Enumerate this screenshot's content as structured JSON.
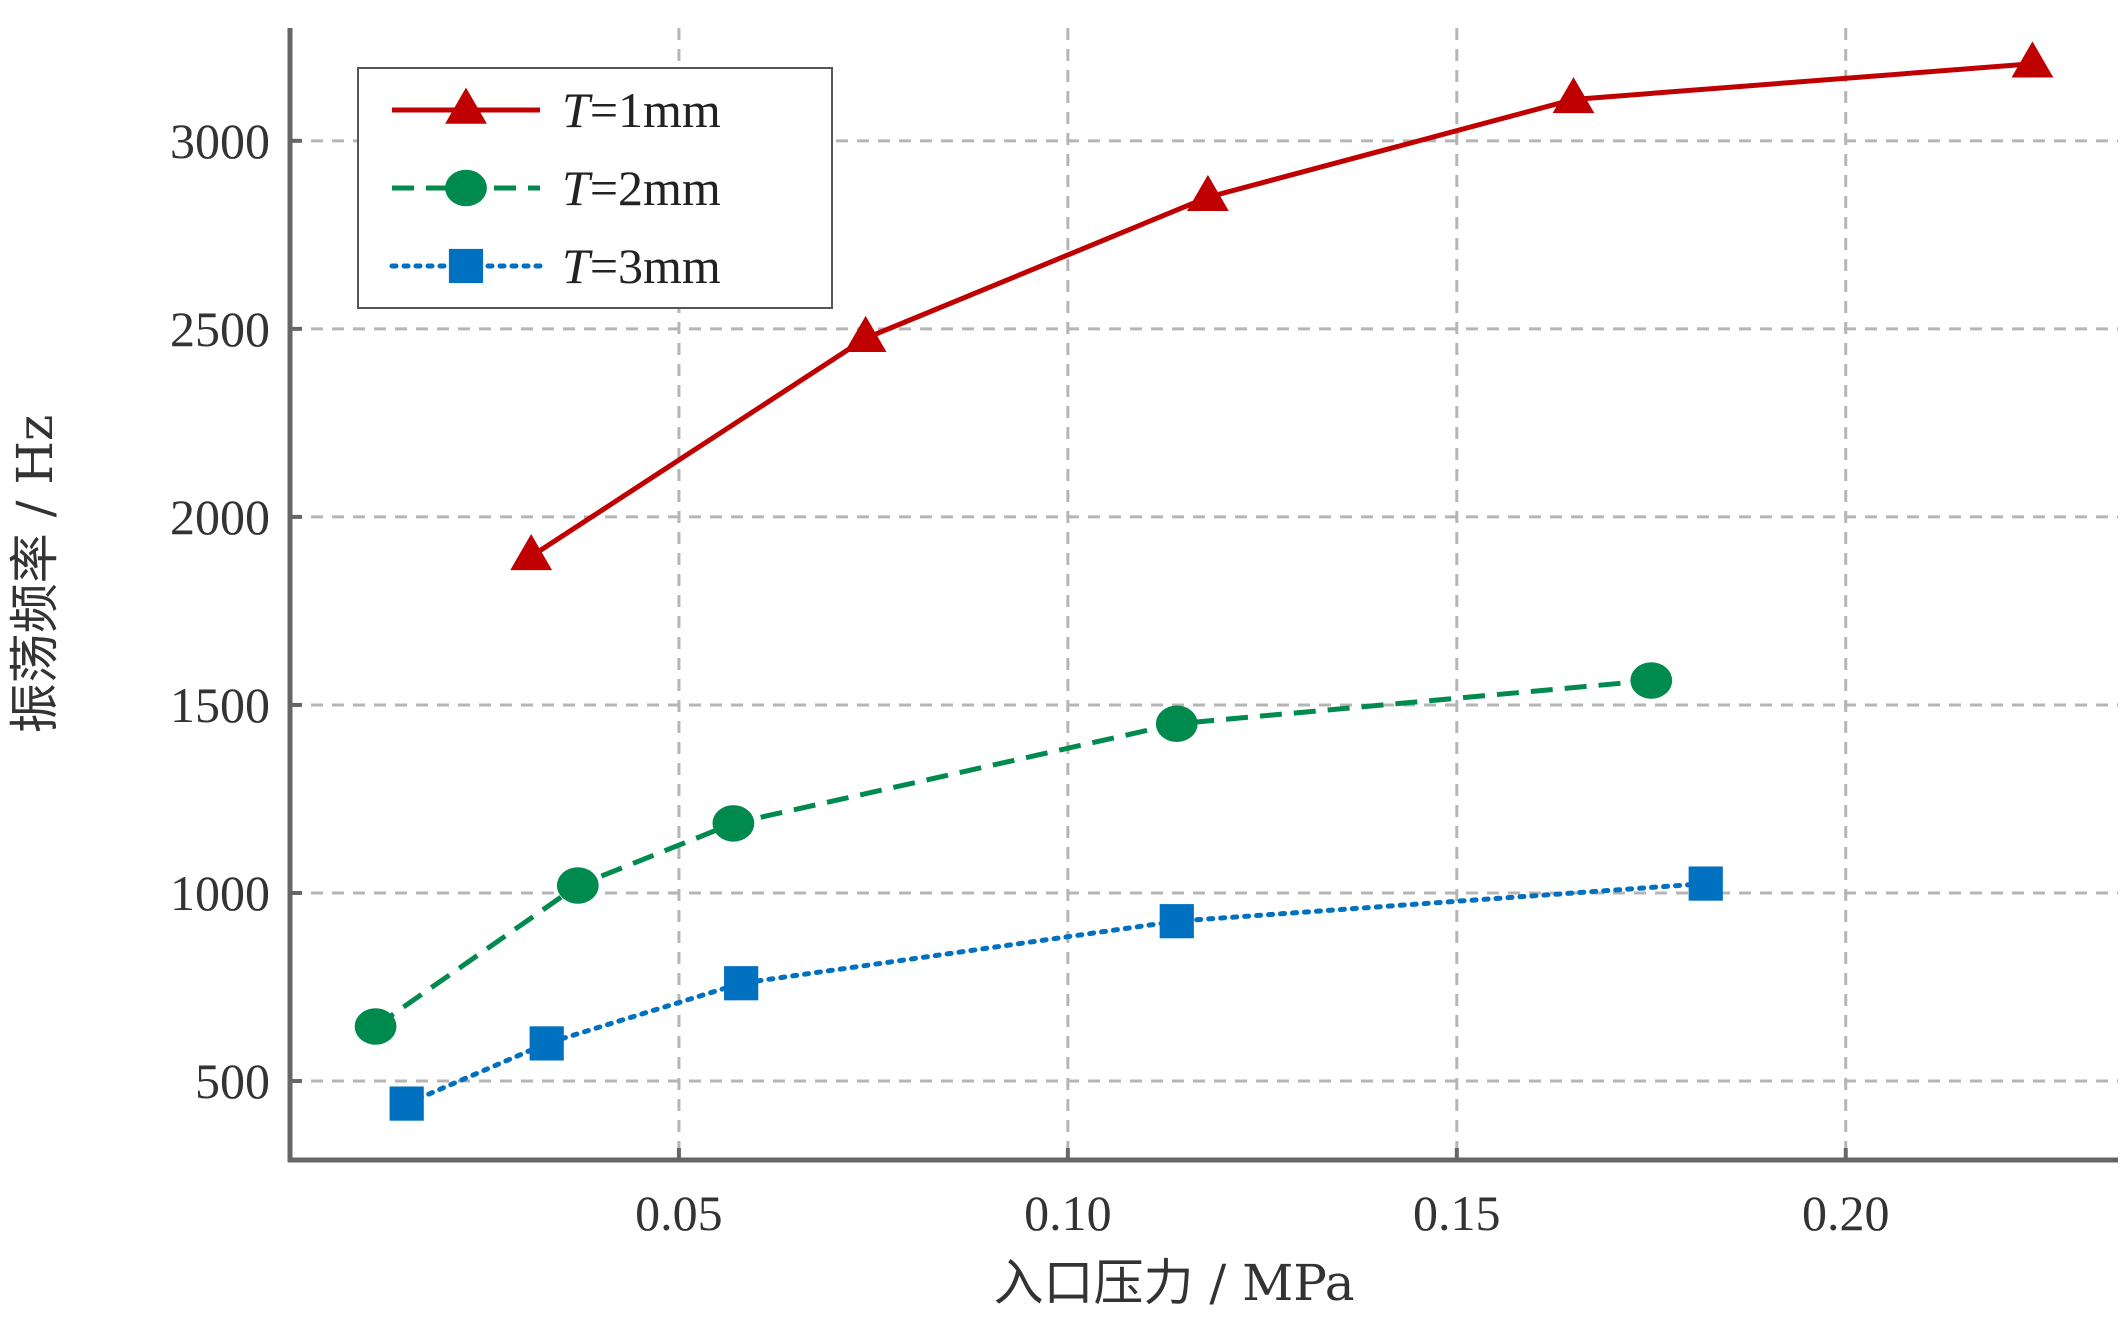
{
  "chart_data": {
    "type": "line",
    "title": "",
    "xlabel": "入口压力 / MPa",
    "ylabel": "振荡频率 / Hz",
    "xlim": [
      0.0,
      0.235
    ],
    "ylim": [
      290,
      3300
    ],
    "xticks": [
      0.05,
      0.1,
      0.15,
      0.2
    ],
    "xtick_labels": [
      "0.05",
      "0.10",
      "0.15",
      "0.20"
    ],
    "yticks": [
      500,
      1000,
      1500,
      2000,
      2500,
      3000
    ],
    "ytick_labels": [
      "500",
      "1000",
      "1500",
      "2000",
      "2500",
      "3000"
    ],
    "grid": true,
    "legend_position": "top-left",
    "series": [
      {
        "name": "T=1mm",
        "name_prefix": "T",
        "name_suffix": "=1mm",
        "color": "#c00000",
        "line_style": "solid",
        "marker": "triangle",
        "x": [
          0.031,
          0.074,
          0.118,
          0.165,
          0.224
        ],
        "y": [
          1895,
          2475,
          2850,
          3110,
          3205
        ]
      },
      {
        "name": "T=2mm",
        "name_prefix": "T",
        "name_suffix": "=2mm",
        "color": "#008a4e",
        "line_style": "dashed",
        "marker": "circle",
        "x": [
          0.011,
          0.037,
          0.057,
          0.114,
          0.175
        ],
        "y": [
          645,
          1020,
          1185,
          1450,
          1565
        ]
      },
      {
        "name": "T=3mm",
        "name_prefix": "T",
        "name_suffix": "=3mm",
        "color": "#0070c0",
        "line_style": "dotted",
        "marker": "square",
        "x": [
          0.015,
          0.033,
          0.058,
          0.114,
          0.182
        ],
        "y": [
          440,
          600,
          760,
          925,
          1025
        ]
      }
    ]
  }
}
